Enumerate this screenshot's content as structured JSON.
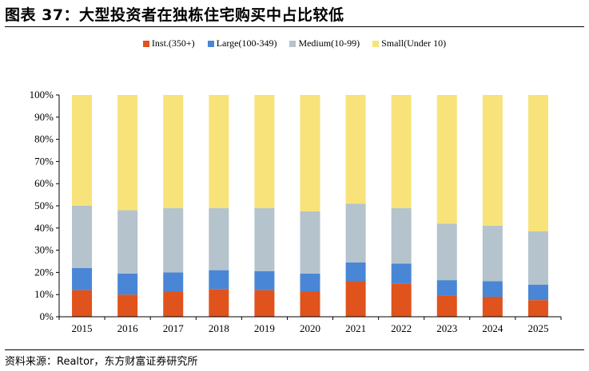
{
  "header": {
    "title": "图表 37：大型投资者在独栋住宅购买中占比较低"
  },
  "footer": {
    "source": "资料来源：Realtor，东方财富证券研究所"
  },
  "chart_data": {
    "type": "bar",
    "stacked": true,
    "categories": [
      "2015",
      "2016",
      "2017",
      "2018",
      "2019",
      "2020",
      "2021",
      "2022",
      "2023",
      "2024",
      "2025"
    ],
    "series": [
      {
        "name": "Inst.(350+)",
        "color": "#e0531c",
        "values": [
          12,
          10,
          11.5,
          12.5,
          12,
          11.5,
          16,
          15,
          9.5,
          9,
          7.5
        ]
      },
      {
        "name": "Large(100-349)",
        "color": "#4a86d6",
        "values": [
          10,
          9.5,
          8.5,
          8.5,
          8.5,
          8,
          8.5,
          9,
          7,
          7,
          7
        ]
      },
      {
        "name": "Medium(10-99)",
        "color": "#b4c3cc",
        "values": [
          28,
          28.5,
          29,
          28,
          28.5,
          28,
          26.5,
          25,
          25.5,
          25,
          24
        ]
      },
      {
        "name": "Small(Under 10)",
        "color": "#f7e37a",
        "values": [
          50,
          52,
          51,
          51,
          51,
          52.5,
          49,
          51,
          58,
          59,
          61.5
        ]
      }
    ],
    "yticks": [
      "0%",
      "10%",
      "20%",
      "30%",
      "40%",
      "50%",
      "60%",
      "70%",
      "80%",
      "90%",
      "100%"
    ],
    "ylim": [
      0,
      100
    ],
    "legend_position": "top-center",
    "grid": false
  }
}
